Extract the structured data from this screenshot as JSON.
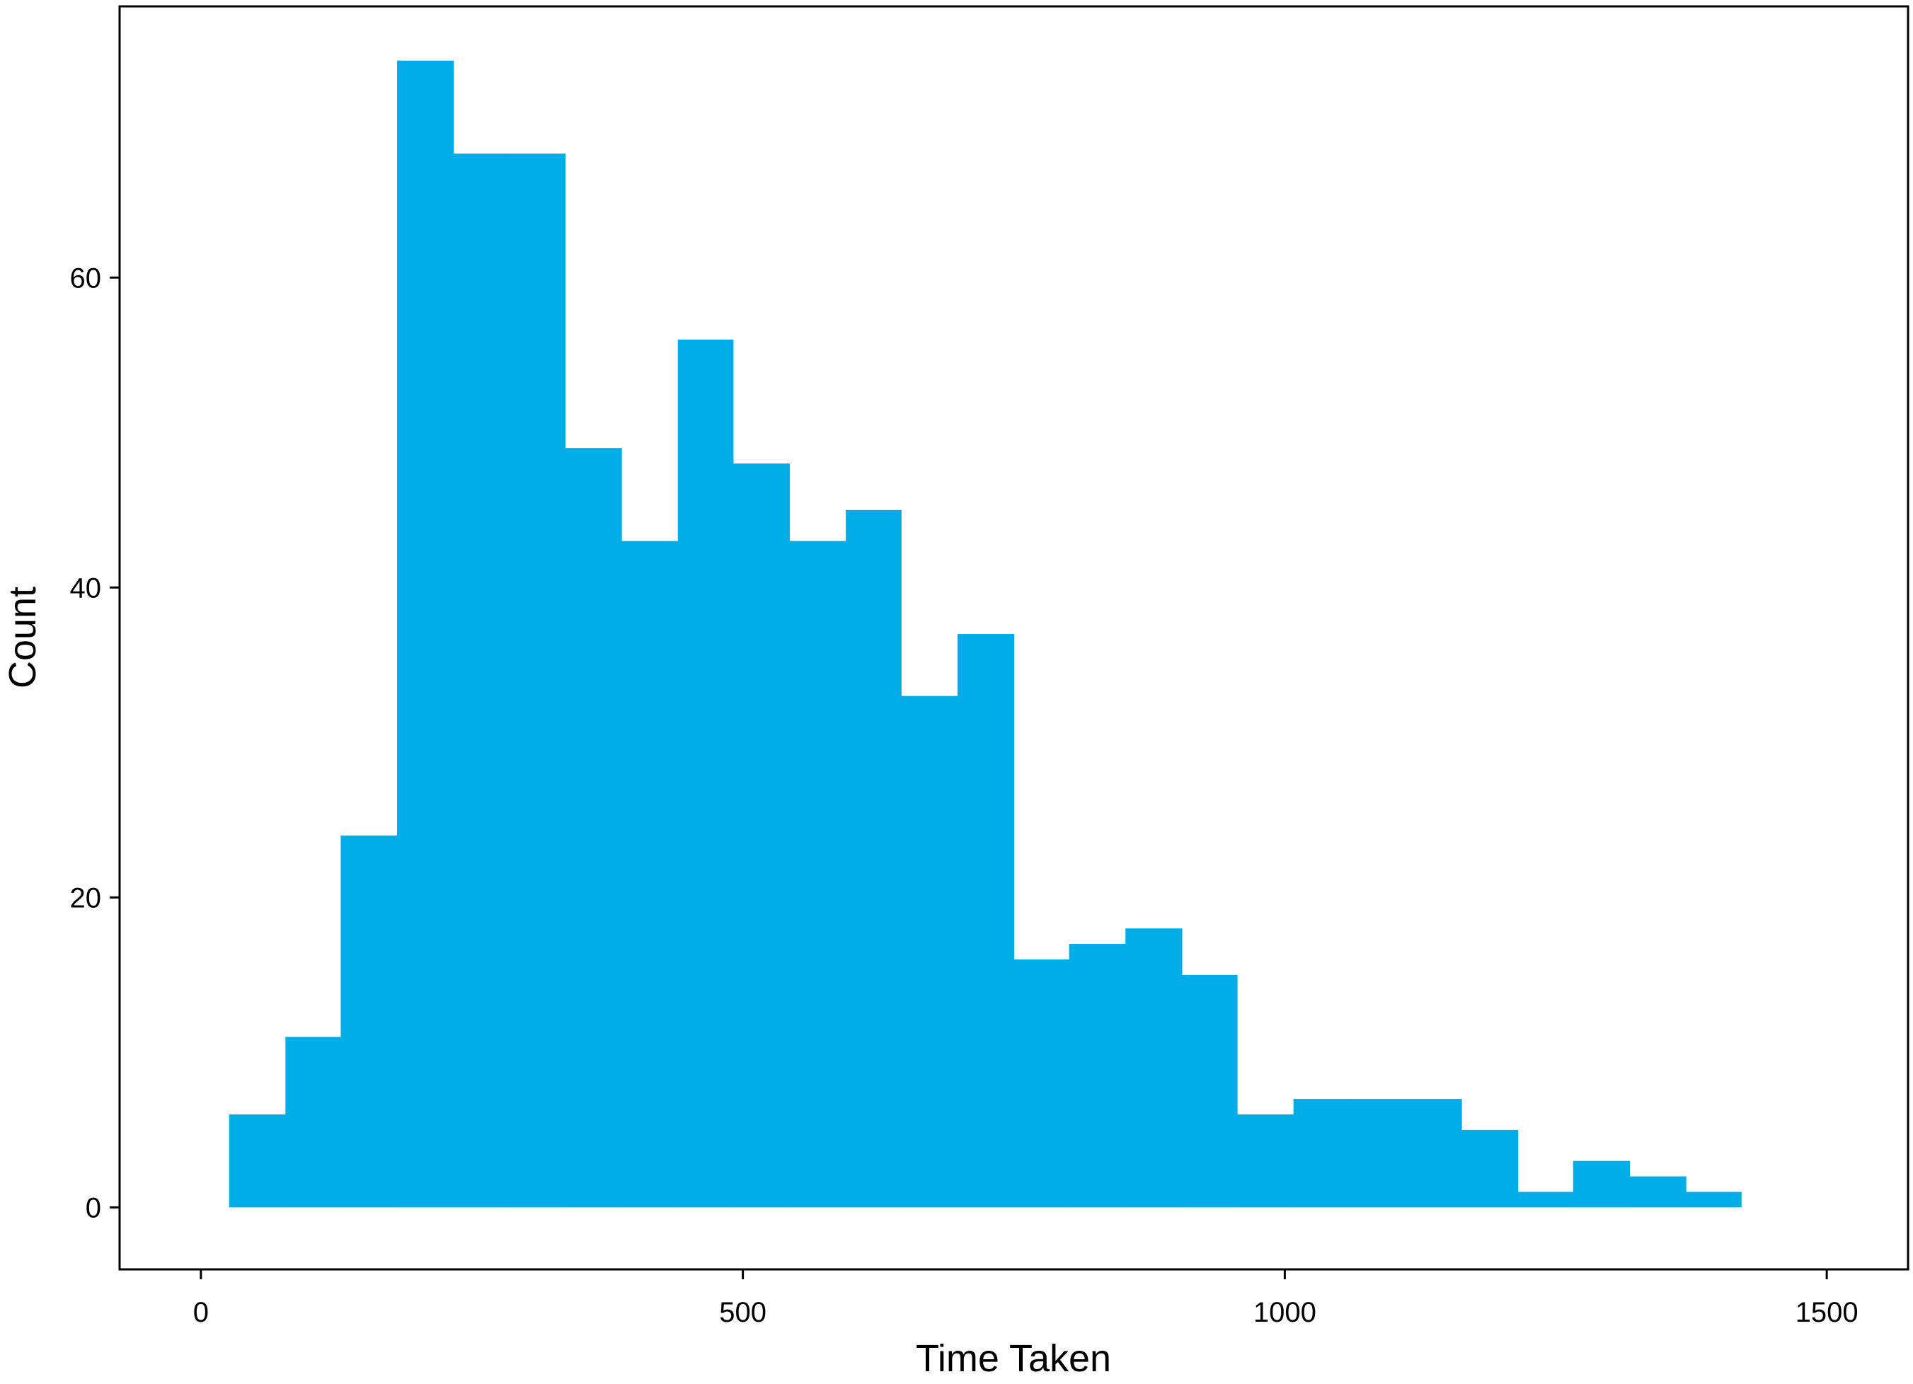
{
  "chart_data": {
    "type": "histogram",
    "title": "",
    "xlabel": "Time Taken",
    "ylabel": "Count",
    "xlim": [
      -75,
      1575
    ],
    "ylim": [
      -4,
      77.5
    ],
    "x_ticks": [
      0,
      500,
      1000,
      1500
    ],
    "y_ticks": [
      0,
      20,
      40,
      60
    ],
    "grid": false,
    "legend": "none",
    "bar_color": "#00ADE6",
    "bins": [
      {
        "x0": 26,
        "x1": 78,
        "count": 6
      },
      {
        "x0": 78,
        "x1": 129,
        "count": 11
      },
      {
        "x0": 129,
        "x1": 181,
        "count": 24
      },
      {
        "x0": 181,
        "x1": 233,
        "count": 74
      },
      {
        "x0": 233,
        "x1": 284,
        "count": 68
      },
      {
        "x0": 284,
        "x1": 336,
        "count": 68
      },
      {
        "x0": 336,
        "x1": 388,
        "count": 49
      },
      {
        "x0": 388,
        "x1": 440,
        "count": 43
      },
      {
        "x0": 440,
        "x1": 491,
        "count": 56
      },
      {
        "x0": 491,
        "x1": 543,
        "count": 48
      },
      {
        "x0": 543,
        "x1": 595,
        "count": 43
      },
      {
        "x0": 595,
        "x1": 646,
        "count": 45
      },
      {
        "x0": 646,
        "x1": 698,
        "count": 33
      },
      {
        "x0": 698,
        "x1": 750,
        "count": 37
      },
      {
        "x0": 750,
        "x1": 801,
        "count": 16
      },
      {
        "x0": 801,
        "x1": 853,
        "count": 17
      },
      {
        "x0": 853,
        "x1": 905,
        "count": 18
      },
      {
        "x0": 905,
        "x1": 956,
        "count": 15
      },
      {
        "x0": 956,
        "x1": 1008,
        "count": 6
      },
      {
        "x0": 1008,
        "x1": 1060,
        "count": 7
      },
      {
        "x0": 1060,
        "x1": 1111,
        "count": 7
      },
      {
        "x0": 1111,
        "x1": 1163,
        "count": 7
      },
      {
        "x0": 1163,
        "x1": 1215,
        "count": 5
      },
      {
        "x0": 1215,
        "x1": 1266,
        "count": 1
      },
      {
        "x0": 1266,
        "x1": 1318,
        "count": 3
      },
      {
        "x0": 1318,
        "x1": 1370,
        "count": 2
      },
      {
        "x0": 1370,
        "x1": 1421,
        "count": 1
      }
    ]
  }
}
